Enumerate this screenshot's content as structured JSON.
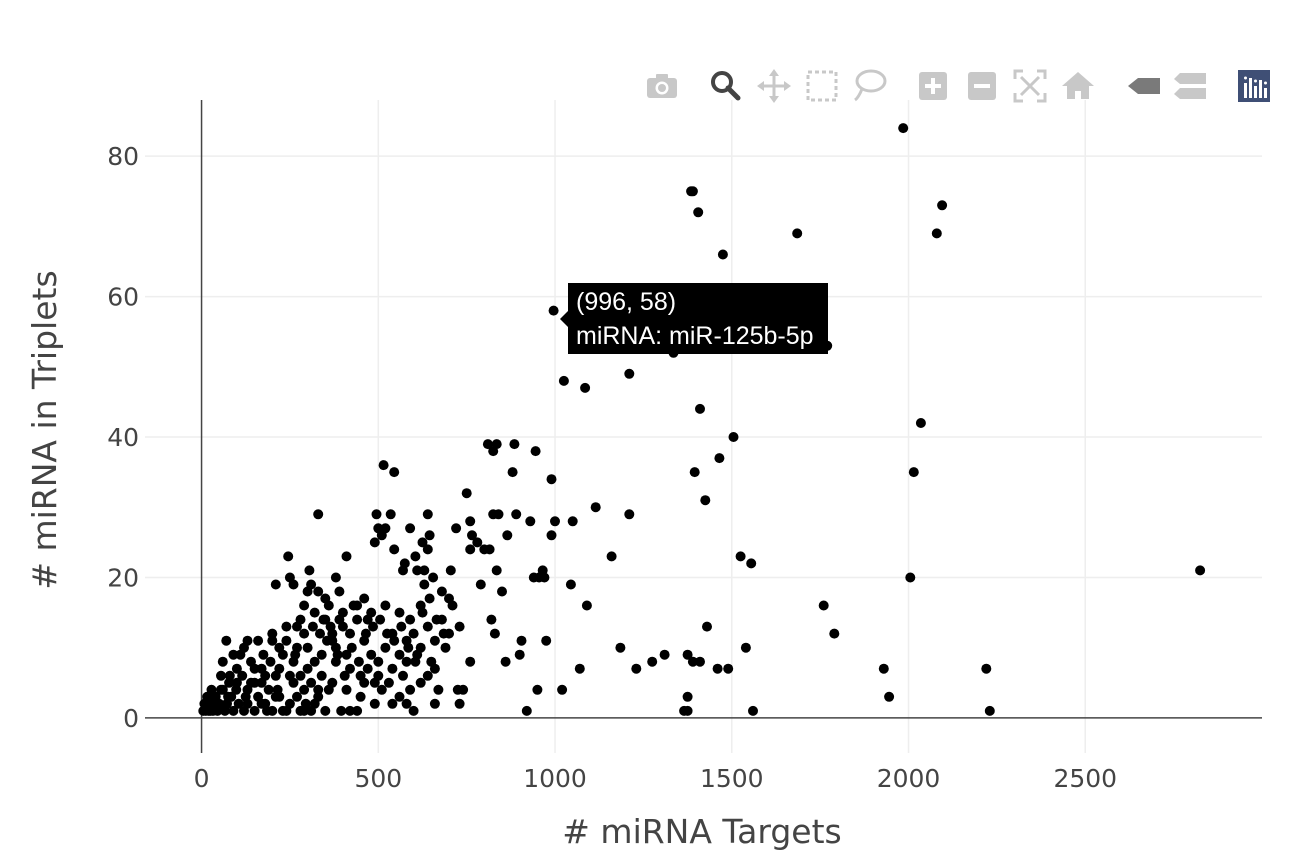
{
  "modebar": {
    "buttons": [
      {
        "name": "camera-icon",
        "title": "Download plot as a png"
      },
      {
        "name": "zoom-icon",
        "title": "Zoom"
      },
      {
        "name": "pan-icon",
        "title": "Pan"
      },
      {
        "name": "box-select-icon",
        "title": "Box Select"
      },
      {
        "name": "lasso-select-icon",
        "title": "Lasso Select"
      },
      {
        "name": "zoom-in-icon",
        "title": "Zoom in"
      },
      {
        "name": "zoom-out-icon",
        "title": "Zoom out"
      },
      {
        "name": "autoscale-icon",
        "title": "Autoscale"
      },
      {
        "name": "reset-axes-icon",
        "title": "Reset axes"
      },
      {
        "name": "hover-closest-icon",
        "title": "Show closest data on hover"
      },
      {
        "name": "hover-compare-icon",
        "title": "Compare data on hover"
      },
      {
        "name": "plotly-logo-icon",
        "title": "Produced with Plotly"
      }
    ]
  },
  "hover": {
    "coords": "(996, 58)",
    "label": "miRNA: miR-125b-5p"
  },
  "chart_data": {
    "type": "scatter",
    "title": "",
    "xlabel": "# miRNA Targets",
    "ylabel": "# miRNA in Triplets",
    "xlim": [
      -160,
      3000
    ],
    "ylim": [
      -5,
      88
    ],
    "xticks": [
      0,
      500,
      1000,
      1500,
      2000,
      2500
    ],
    "yticks": [
      0,
      20,
      40,
      60,
      80
    ],
    "grid": true,
    "marker_color": "#000000",
    "series": [
      {
        "name": "miRNA",
        "points": [
          [
            1985,
            84
          ],
          [
            1385,
            75
          ],
          [
            1390,
            75
          ],
          [
            1405,
            72
          ],
          [
            2095,
            73
          ],
          [
            1685,
            69
          ],
          [
            2080,
            69
          ],
          [
            1475,
            66
          ],
          [
            996,
            58
          ],
          [
            1335,
            52
          ],
          [
            1770,
            53
          ],
          [
            1025,
            48
          ],
          [
            1210,
            49
          ],
          [
            1085,
            47
          ],
          [
            1410,
            44
          ],
          [
            2035,
            42
          ],
          [
            1505,
            40
          ],
          [
            1465,
            37
          ],
          [
            810,
            39
          ],
          [
            825,
            38
          ],
          [
            835,
            39
          ],
          [
            885,
            39
          ],
          [
            945,
            38
          ],
          [
            1395,
            35
          ],
          [
            2015,
            35
          ],
          [
            1425,
            31
          ],
          [
            990,
            34
          ],
          [
            880,
            35
          ],
          [
            515,
            36
          ],
          [
            545,
            35
          ],
          [
            750,
            32
          ],
          [
            1115,
            30
          ],
          [
            495,
            29
          ],
          [
            535,
            29
          ],
          [
            330,
            29
          ],
          [
            640,
            29
          ],
          [
            825,
            29
          ],
          [
            840,
            29
          ],
          [
            890,
            29
          ],
          [
            1210,
            29
          ],
          [
            500,
            27
          ],
          [
            510,
            26
          ],
          [
            590,
            27
          ],
          [
            645,
            26
          ],
          [
            720,
            27
          ],
          [
            760,
            28
          ],
          [
            765,
            26
          ],
          [
            865,
            26
          ],
          [
            930,
            28
          ],
          [
            990,
            26
          ],
          [
            1000,
            28
          ],
          [
            1050,
            28
          ],
          [
            490,
            25
          ],
          [
            520,
            27
          ],
          [
            625,
            25
          ],
          [
            640,
            24
          ],
          [
            545,
            24
          ],
          [
            575,
            22
          ],
          [
            605,
            23
          ],
          [
            760,
            24
          ],
          [
            780,
            25
          ],
          [
            800,
            24
          ],
          [
            815,
            24
          ],
          [
            245,
            23
          ],
          [
            410,
            23
          ],
          [
            1160,
            23
          ],
          [
            1525,
            23
          ],
          [
            1555,
            22
          ],
          [
            570,
            21
          ],
          [
            610,
            21
          ],
          [
            630,
            21
          ],
          [
            655,
            20
          ],
          [
            705,
            21
          ],
          [
            835,
            21
          ],
          [
            2825,
            21
          ],
          [
            2005,
            20
          ],
          [
            940,
            20
          ],
          [
            955,
            20
          ],
          [
            965,
            21
          ],
          [
            970,
            20
          ],
          [
            380,
            20
          ],
          [
            305,
            21
          ],
          [
            250,
            20
          ],
          [
            630,
            19
          ],
          [
            1045,
            19
          ],
          [
            790,
            19
          ],
          [
            210,
            19
          ],
          [
            260,
            19
          ],
          [
            300,
            18
          ],
          [
            350,
            17
          ],
          [
            390,
            18
          ],
          [
            460,
            17
          ],
          [
            680,
            18
          ],
          [
            700,
            17
          ],
          [
            1090,
            16
          ],
          [
            1760,
            16
          ],
          [
            850,
            18
          ],
          [
            1790,
            12
          ],
          [
            820,
            14
          ],
          [
            830,
            12
          ],
          [
            1430,
            13
          ],
          [
            730,
            13
          ],
          [
            1185,
            10
          ],
          [
            1540,
            10
          ],
          [
            1310,
            9
          ],
          [
            1375,
            9
          ],
          [
            1390,
            8
          ],
          [
            1410,
            8
          ],
          [
            1275,
            8
          ],
          [
            1230,
            7
          ],
          [
            1460,
            7
          ],
          [
            1490,
            7
          ],
          [
            1070,
            7
          ],
          [
            1930,
            7
          ],
          [
            2220,
            7
          ],
          [
            860,
            8
          ],
          [
            760,
            8
          ],
          [
            900,
            9
          ],
          [
            905,
            11
          ],
          [
            975,
            11
          ],
          [
            1020,
            4
          ],
          [
            950,
            4
          ],
          [
            1375,
            3
          ],
          [
            1945,
            3
          ],
          [
            1365,
            1
          ],
          [
            1375,
            1
          ],
          [
            1560,
            1
          ],
          [
            2230,
            1
          ],
          [
            920,
            1
          ],
          [
            600,
            1
          ],
          [
            660,
            2
          ],
          [
            730,
            2
          ],
          [
            740,
            4
          ],
          [
            725,
            4
          ],
          [
            670,
            4
          ],
          [
            640,
            6
          ],
          [
            590,
            4
          ],
          [
            580,
            2
          ],
          [
            560,
            3
          ],
          [
            540,
            2
          ],
          [
            510,
            4
          ],
          [
            490,
            5
          ],
          [
            470,
            7
          ],
          [
            450,
            6
          ],
          [
            440,
            1
          ],
          [
            420,
            1
          ],
          [
            410,
            9
          ],
          [
            395,
            1
          ],
          [
            370,
            11
          ],
          [
            340,
            9
          ],
          [
            310,
            1
          ],
          [
            295,
            2
          ],
          [
            280,
            1
          ],
          [
            250,
            6
          ],
          [
            230,
            1
          ],
          [
            215,
            4
          ],
          [
            200,
            11
          ],
          [
            185,
            1
          ],
          [
            170,
            2
          ],
          [
            160,
            3
          ],
          [
            150,
            1
          ],
          [
            140,
            5
          ],
          [
            130,
            2
          ],
          [
            120,
            1
          ],
          [
            115,
            6
          ],
          [
            105,
            2
          ],
          [
            98,
            4
          ],
          [
            90,
            1
          ],
          [
            84,
            3
          ],
          [
            78,
            5
          ],
          [
            72,
            2
          ],
          [
            66,
            1
          ],
          [
            60,
            4
          ],
          [
            55,
            6
          ],
          [
            50,
            2
          ],
          [
            45,
            1
          ],
          [
            40,
            3
          ],
          [
            36,
            2
          ],
          [
            32,
            1
          ],
          [
            28,
            4
          ],
          [
            24,
            2
          ],
          [
            20,
            1
          ],
          [
            16,
            3
          ],
          [
            12,
            1
          ],
          [
            8,
            2
          ],
          [
            5,
            1
          ],
          [
            70,
            11
          ],
          [
            110,
            9
          ],
          [
            130,
            11
          ],
          [
            150,
            7
          ],
          [
            175,
            9
          ],
          [
            195,
            8
          ],
          [
            220,
            10
          ],
          [
            240,
            11
          ],
          [
            265,
            9
          ],
          [
            290,
            12
          ],
          [
            315,
            13
          ],
          [
            335,
            12
          ],
          [
            355,
            11
          ],
          [
            380,
            10
          ],
          [
            400,
            13
          ],
          [
            420,
            12
          ],
          [
            440,
            14
          ],
          [
            460,
            11
          ],
          [
            480,
            9
          ],
          [
            500,
            8
          ],
          [
            520,
            10
          ],
          [
            540,
            12
          ],
          [
            560,
            9
          ],
          [
            580,
            11
          ],
          [
            600,
            12
          ],
          [
            620,
            10
          ],
          [
            640,
            13
          ],
          [
            660,
            11
          ],
          [
            680,
            14
          ],
          [
            700,
            12
          ],
          [
            560,
            15
          ],
          [
            590,
            14
          ],
          [
            620,
            16
          ],
          [
            520,
            16
          ],
          [
            480,
            15
          ],
          [
            440,
            16
          ],
          [
            400,
            15
          ],
          [
            360,
            16
          ],
          [
            320,
            15
          ],
          [
            280,
            14
          ],
          [
            240,
            13
          ],
          [
            200,
            12
          ],
          [
            160,
            11
          ],
          [
            120,
            10
          ],
          [
            90,
            9
          ],
          [
            60,
            8
          ],
          [
            140,
            8
          ],
          [
            180,
            6
          ],
          [
            220,
            7
          ],
          [
            260,
            5
          ],
          [
            300,
            7
          ],
          [
            340,
            6
          ],
          [
            380,
            8
          ],
          [
            420,
            7
          ],
          [
            460,
            5
          ],
          [
            500,
            6
          ],
          [
            540,
            7
          ],
          [
            580,
            8
          ],
          [
            620,
            5
          ],
          [
            660,
            7
          ],
          [
            100,
            7
          ],
          [
            80,
            6
          ],
          [
            130,
            4
          ],
          [
            170,
            5
          ],
          [
            210,
            3
          ],
          [
            250,
            2
          ],
          [
            290,
            4
          ],
          [
            330,
            3
          ],
          [
            370,
            5
          ],
          [
            410,
            4
          ],
          [
            450,
            3
          ],
          [
            490,
            2
          ],
          [
            530,
            5
          ],
          [
            570,
            6
          ],
          [
            610,
            9
          ],
          [
            650,
            8
          ],
          [
            690,
            10
          ],
          [
            710,
            16
          ],
          [
            345,
            14
          ],
          [
            365,
            13
          ],
          [
            385,
            9
          ],
          [
            405,
            6
          ],
          [
            425,
            10
          ],
          [
            445,
            8
          ],
          [
            465,
            12
          ],
          [
            485,
            13
          ],
          [
            505,
            14
          ],
          [
            525,
            12
          ],
          [
            545,
            11
          ],
          [
            565,
            13
          ],
          [
            585,
            10
          ],
          [
            605,
            8
          ],
          [
            625,
            15
          ],
          [
            645,
            17
          ],
          [
            665,
            14
          ],
          [
            685,
            12
          ],
          [
            300,
            10
          ],
          [
            310,
            5
          ],
          [
            320,
            8
          ],
          [
            330,
            4
          ],
          [
            270,
            10
          ],
          [
            280,
            6
          ],
          [
            260,
            8
          ],
          [
            230,
            9
          ],
          [
            210,
            6
          ],
          [
            190,
            4
          ],
          [
            170,
            7
          ],
          [
            150,
            5
          ],
          [
            125,
            3
          ],
          [
            100,
            5
          ],
          [
            75,
            3
          ],
          [
            55,
            4
          ],
          [
            35,
            3
          ],
          [
            25,
            1
          ],
          [
            180,
            2
          ],
          [
            200,
            1
          ],
          [
            220,
            3
          ],
          [
            240,
            1
          ],
          [
            270,
            3
          ],
          [
            290,
            1
          ],
          [
            320,
            2
          ],
          [
            350,
            1
          ],
          [
            360,
            4
          ],
          [
            270,
            13
          ],
          [
            290,
            16
          ],
          [
            310,
            19
          ],
          [
            330,
            18
          ],
          [
            350,
            14
          ],
          [
            370,
            12
          ],
          [
            390,
            14
          ],
          [
            430,
            16
          ],
          [
            470,
            14
          ]
        ]
      }
    ]
  }
}
